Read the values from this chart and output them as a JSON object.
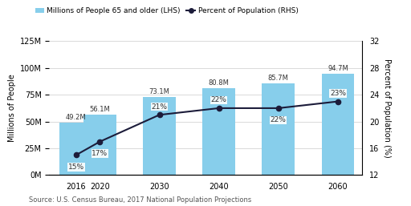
{
  "years": [
    2016,
    2020,
    2030,
    2040,
    2050,
    2060
  ],
  "bar_values": [
    49.2,
    56.1,
    73.1,
    80.8,
    85.7,
    94.7
  ],
  "bar_labels": [
    "49.2M",
    "56.1M",
    "73.1M",
    "80.8M",
    "85.7M",
    "94.7M"
  ],
  "pct_values": [
    15,
    17,
    21,
    22,
    22,
    23
  ],
  "pct_labels": [
    "15%",
    "17%",
    "21%",
    "22%",
    "22%",
    "23%"
  ],
  "bar_color": "#87CEEB",
  "line_color": "#1C1C3A",
  "lhs_ylim": [
    0,
    125
  ],
  "rhs_ylim": [
    12,
    32
  ],
  "lhs_yticks": [
    0,
    25,
    50,
    75,
    100,
    125
  ],
  "lhs_ytick_labels": [
    "0M",
    "25M",
    "50M",
    "75M",
    "100M",
    "125M"
  ],
  "rhs_yticks": [
    12,
    16,
    20,
    24,
    28,
    32
  ],
  "rhs_ytick_labels": [
    "12",
    "16",
    "20",
    "24",
    "28",
    "32"
  ],
  "legend_bar_label": "Millions of People 65 and older (LHS)",
  "legend_line_label": "Percent of Population (RHS)",
  "ylabel_left": "Millions of People",
  "ylabel_right": "Percent of Population (%)",
  "source_text": "Source: U.S. Census Bureau, 2017 National Population Projections",
  "background_color": "#FFFFFF",
  "grid_color": "#CCCCCC",
  "bar_label_offsets": [
    2,
    2,
    2,
    2,
    2,
    2
  ],
  "pct_label_offsets_y": [
    -1.8,
    -1.8,
    1.2,
    1.2,
    -1.8,
    1.2
  ]
}
